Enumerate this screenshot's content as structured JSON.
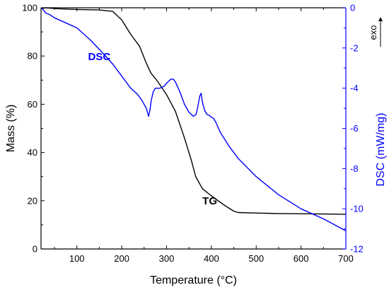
{
  "chart_data": {
    "type": "line",
    "title": "",
    "xlabel": "Temperature (°C)",
    "ylabel_left": "Mass (%)",
    "ylabel_right": "DSC (mW/mg)",
    "exo_label": "exo",
    "xlim": [
      20,
      700
    ],
    "ylim_left": [
      0,
      100
    ],
    "ylim_right": [
      -12,
      0
    ],
    "x_ticks": [
      100,
      200,
      300,
      400,
      500,
      600,
      700
    ],
    "y_left_ticks": [
      0,
      20,
      40,
      60,
      80,
      100
    ],
    "y_right_ticks": [
      0,
      -2,
      -4,
      -6,
      -8,
      -10,
      -12
    ],
    "grid": false,
    "colors": {
      "left_axis": "#000000",
      "right_axis": "#0000ff"
    },
    "series": [
      {
        "name": "TG",
        "axis": "left",
        "color": "#000000",
        "label_at": [
          380,
          18.5
        ],
        "x": [
          20,
          30,
          60,
          100,
          150,
          180,
          200,
          220,
          240,
          255,
          265,
          280,
          300,
          320,
          340,
          355,
          365,
          380,
          400,
          430,
          450,
          460,
          500,
          550,
          600,
          650,
          700
        ],
        "y": [
          99.6,
          100,
          99.6,
          99.3,
          99.1,
          98.5,
          95,
          89,
          84,
          77,
          73,
          69.5,
          64,
          57,
          46,
          37,
          30,
          25,
          22,
          18,
          15.7,
          15.1,
          14.9,
          14.7,
          14.6,
          14.5,
          14.4
        ]
      },
      {
        "name": "DSC",
        "axis": "right",
        "color": "#0000ff",
        "label_at": [
          125,
          -2.6
        ],
        "x": [
          20,
          25,
          30,
          40,
          50,
          80,
          100,
          130,
          160,
          180,
          200,
          220,
          235,
          245,
          255,
          260,
          263,
          266,
          270,
          275,
          285,
          295,
          300,
          305,
          310,
          315,
          320,
          330,
          340,
          350,
          360,
          366,
          370,
          374,
          377,
          380,
          385,
          390,
          395,
          400,
          405,
          410,
          420,
          440,
          460,
          500,
          550,
          600,
          650,
          700
        ],
        "y": [
          0,
          -0.1,
          -0.25,
          -0.35,
          -0.5,
          -0.8,
          -1.0,
          -1.6,
          -2.3,
          -2.8,
          -3.4,
          -4.0,
          -4.3,
          -4.6,
          -5.0,
          -5.4,
          -5.1,
          -4.6,
          -4.2,
          -4.0,
          -4.0,
          -3.9,
          -3.75,
          -3.65,
          -3.55,
          -3.55,
          -3.7,
          -4.2,
          -4.8,
          -5.2,
          -5.4,
          -5.3,
          -4.9,
          -4.4,
          -4.25,
          -4.7,
          -5.1,
          -5.3,
          -5.35,
          -5.45,
          -5.5,
          -5.7,
          -6.2,
          -6.9,
          -7.5,
          -8.4,
          -9.3,
          -10.0,
          -10.5,
          -11.1
        ]
      }
    ]
  }
}
